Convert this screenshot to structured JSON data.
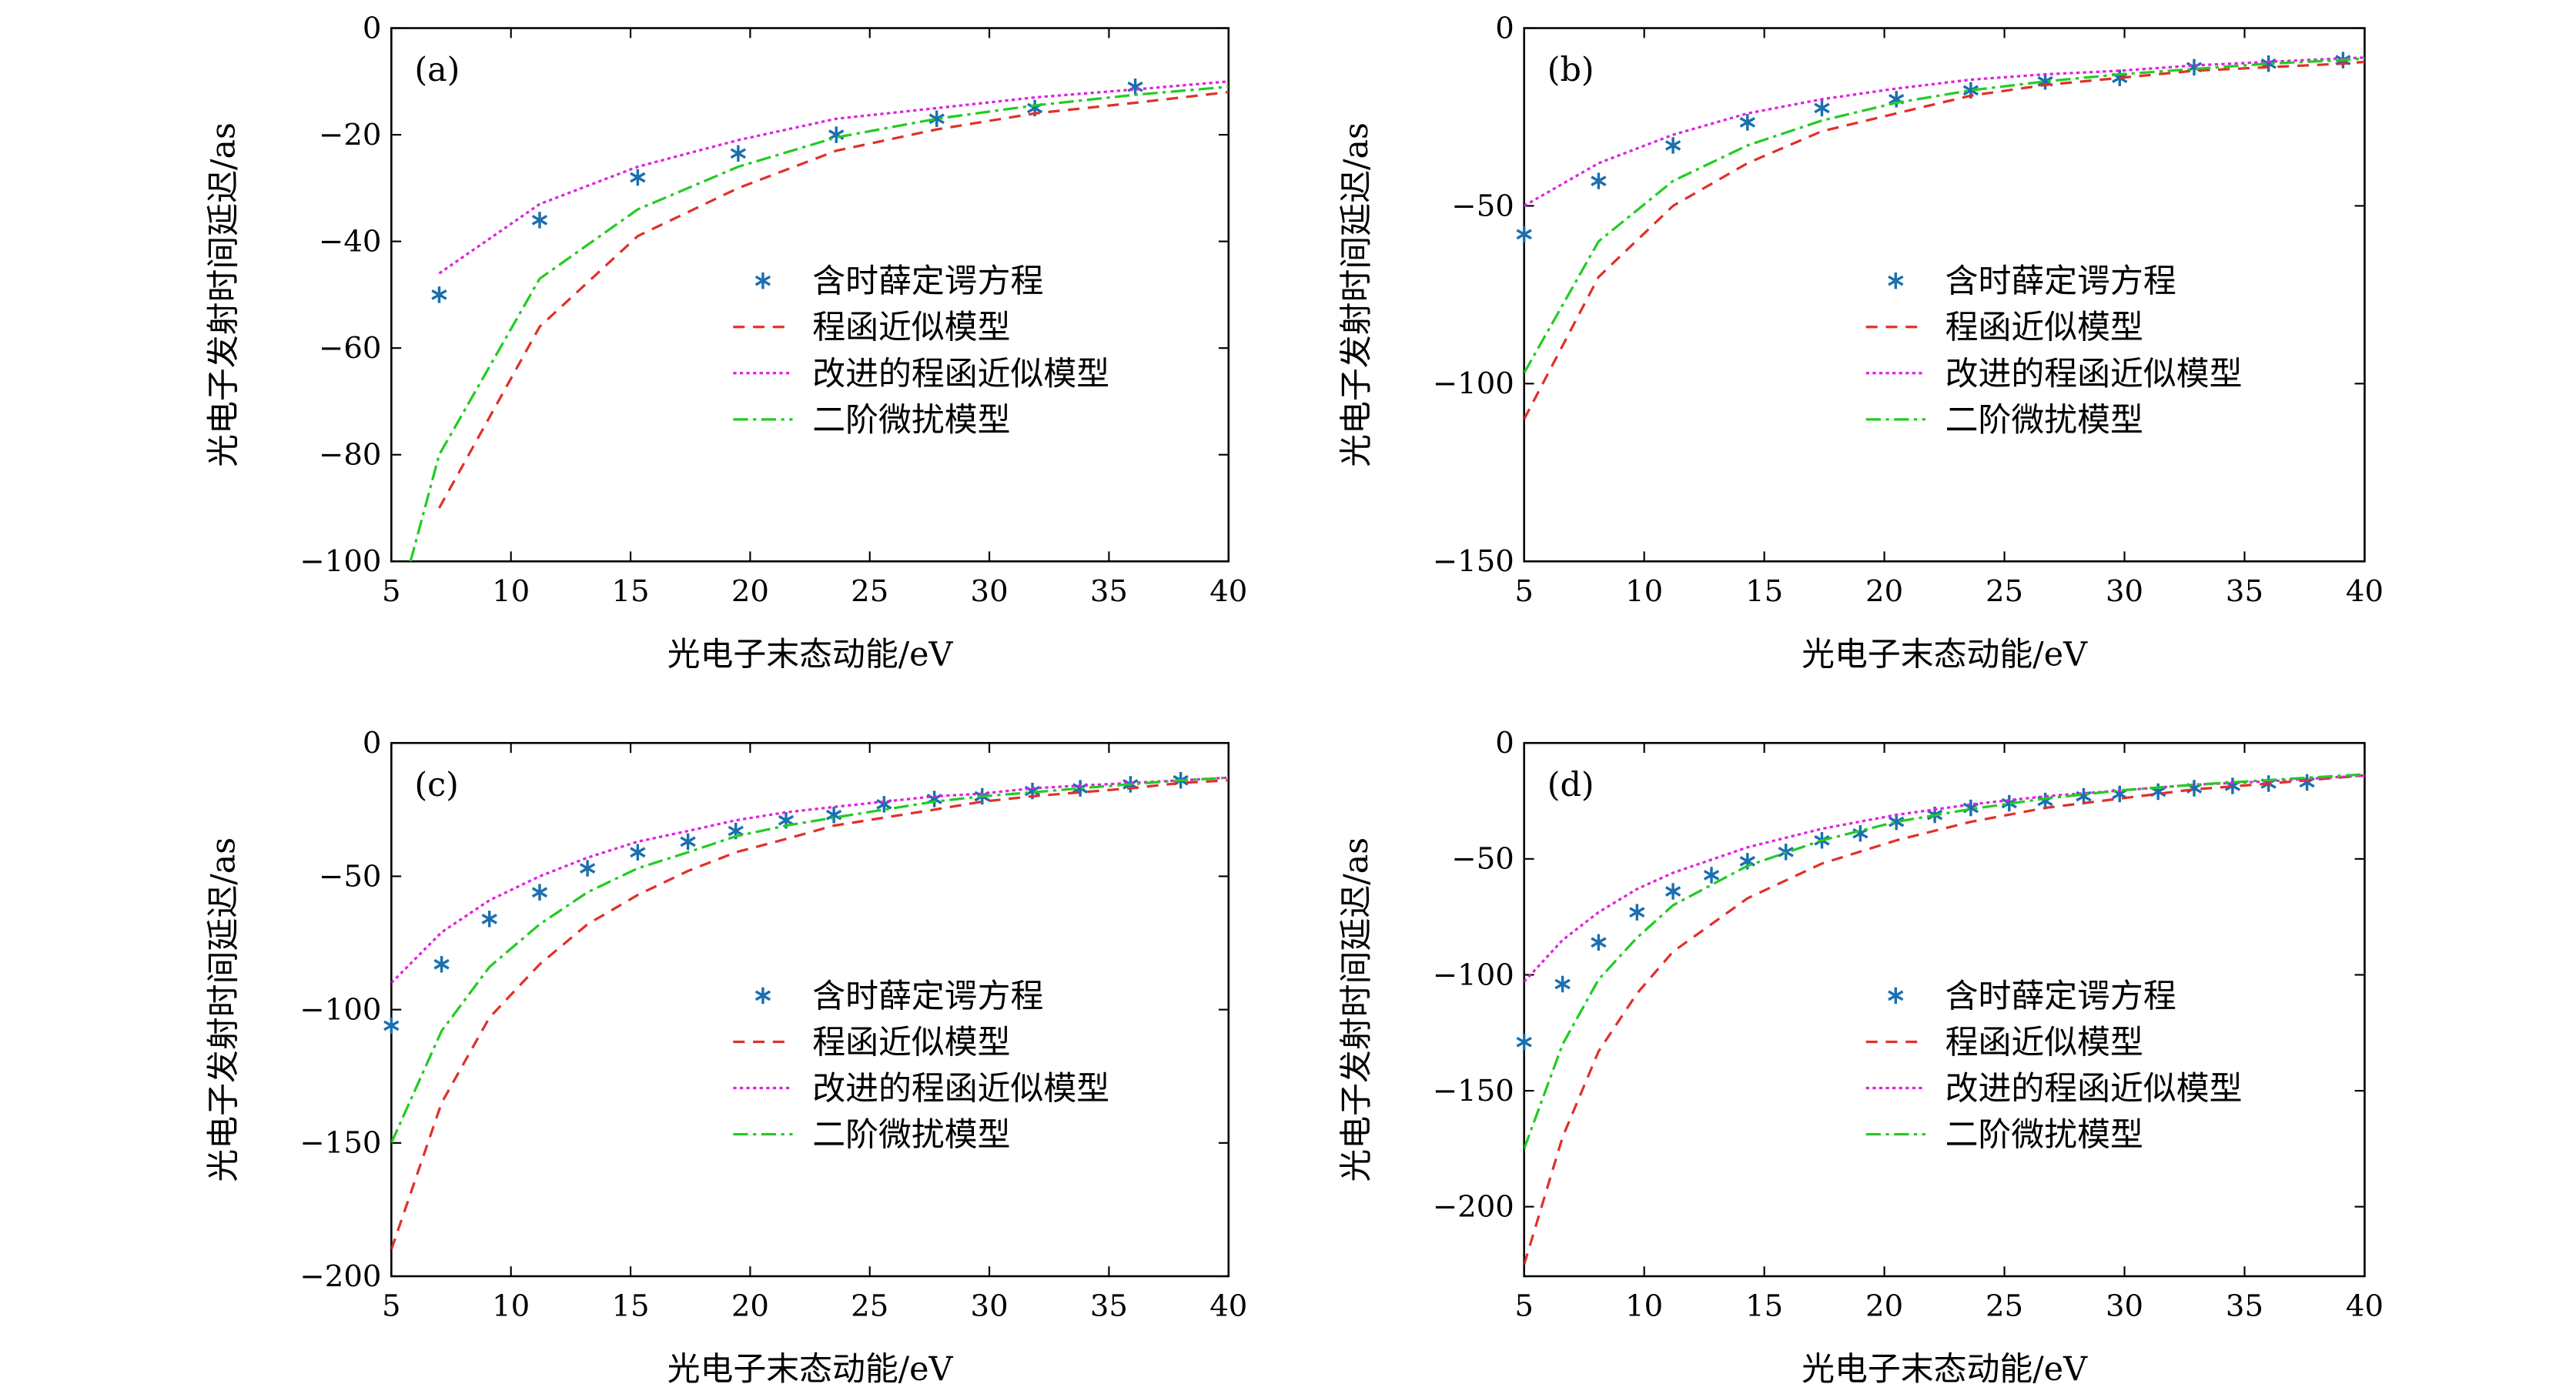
{
  "chart_data": [
    {
      "type": "line",
      "annotation": "(a)",
      "xlabel": "光电子末态动能/eV",
      "ylabel": "光电子发射时间延迟/as",
      "xlim": [
        5,
        40
      ],
      "ylim": [
        -100,
        0
      ],
      "xticks": [
        5,
        10,
        15,
        20,
        25,
        30,
        35,
        40
      ],
      "yticks": [
        0,
        {
          "value": -20,
          "label": "−20"
        },
        {
          "value": -40,
          "label": "−40"
        },
        {
          "value": -60,
          "label": "−60"
        },
        {
          "value": -80,
          "label": "−80"
        },
        {
          "value": -100,
          "label": "−100"
        }
      ],
      "series": [
        {
          "name": "含时薛定谔方程",
          "color": "#1a6fb0",
          "marker": "*",
          "x": [
            7,
            11.2,
            15.3,
            19.5,
            23.6,
            27.8,
            31.9,
            36.1
          ],
          "values": [
            -50,
            -36,
            -28,
            -23.5,
            -20,
            -17,
            -15,
            -11
          ]
        },
        {
          "name": "程函近似模型",
          "color": "#e0302a",
          "linestyle": "dashed",
          "x": [
            7,
            11.2,
            15.3,
            19.5,
            23.6,
            27.8,
            31.9,
            36.1,
            40
          ],
          "values": [
            -90,
            -56,
            -39,
            -30,
            -23,
            -19,
            -16,
            -14,
            -12
          ]
        },
        {
          "name": "改进的程函近似模型",
          "color": "#e020e0",
          "linestyle": "dotted",
          "x": [
            7,
            11.2,
            15.3,
            19.5,
            23.6,
            27.8,
            31.9,
            36.1,
            40
          ],
          "values": [
            -46,
            -33,
            -26,
            -21,
            -17,
            -15,
            -13,
            -11.5,
            -10
          ]
        },
        {
          "name": "二阶微扰模型",
          "color": "#22cc22",
          "linestyle": "dashdot",
          "x": [
            5.8,
            7,
            11.2,
            15.3,
            19.5,
            23.6,
            27.8,
            31.9,
            36.1,
            40
          ],
          "values": [
            -100,
            -80,
            -47,
            -34,
            -26,
            -20.5,
            -17,
            -14.5,
            -12.5,
            -11
          ]
        }
      ]
    },
    {
      "type": "line",
      "annotation": "(b)",
      "xlabel": "光电子末态动能/eV",
      "ylabel": "光电子发射时间延迟/as",
      "xlim": [
        5,
        40
      ],
      "ylim": [
        -150,
        0
      ],
      "xticks": [
        5,
        10,
        15,
        20,
        25,
        30,
        35,
        40
      ],
      "yticks": [
        0,
        {
          "value": -50,
          "label": "−50"
        },
        {
          "value": -100,
          "label": "−100"
        },
        {
          "value": -150,
          "label": "−150"
        }
      ],
      "series": [
        {
          "name": "含时薛定谔方程",
          "color": "#1a6fb0",
          "marker": "*",
          "x": [
            5,
            8.1,
            11.2,
            14.3,
            17.4,
            20.5,
            23.6,
            26.7,
            29.8,
            32.9,
            36,
            39.1
          ],
          "values": [
            -58,
            -43,
            -33,
            -26.5,
            -22.5,
            -20,
            -17.5,
            -15,
            -14,
            -11,
            -10,
            -9
          ]
        },
        {
          "name": "程函近似模型",
          "color": "#e0302a",
          "linestyle": "dashed",
          "x": [
            5,
            8.1,
            11.2,
            14.3,
            17.4,
            20.5,
            23.6,
            26.7,
            29.8,
            32.9,
            36,
            39.1,
            40
          ],
          "values": [
            -110,
            -70,
            -50,
            -38,
            -29,
            -24,
            -19,
            -16,
            -14,
            -12,
            -11,
            -10,
            -9.5
          ]
        },
        {
          "name": "改进的程函近似模型",
          "color": "#e020e0",
          "linestyle": "dotted",
          "x": [
            5,
            8.1,
            11.2,
            14.3,
            17.4,
            20.5,
            23.6,
            26.7,
            29.8,
            32.9,
            36,
            39.1,
            40
          ],
          "values": [
            -50,
            -38,
            -30,
            -24,
            -20,
            -17,
            -14.5,
            -13,
            -12,
            -10.5,
            -9.5,
            -8.5,
            -8.3
          ]
        },
        {
          "name": "二阶微扰模型",
          "color": "#22cc22",
          "linestyle": "dashdot",
          "x": [
            5,
            8.1,
            11.2,
            14.3,
            17.4,
            20.5,
            23.6,
            26.7,
            29.8,
            32.9,
            36,
            39.1,
            40
          ],
          "values": [
            -97,
            -60,
            -43,
            -33,
            -26,
            -21,
            -17.5,
            -15,
            -13,
            -11.5,
            -10,
            -9,
            -8.5
          ]
        }
      ]
    },
    {
      "type": "line",
      "annotation": "(c)",
      "xlabel": "光电子末态动能/eV",
      "ylabel": "光电子发射时间延迟/as",
      "xlim": [
        5,
        40
      ],
      "ylim": [
        -200,
        0
      ],
      "xticks": [
        5,
        10,
        15,
        20,
        25,
        30,
        35,
        40
      ],
      "yticks": [
        0,
        {
          "value": -50,
          "label": "−50"
        },
        {
          "value": -100,
          "label": "−100"
        },
        {
          "value": -150,
          "label": "−150"
        },
        {
          "value": -200,
          "label": "−200"
        }
      ],
      "series": [
        {
          "name": "含时薛定谔方程",
          "color": "#1a6fb0",
          "marker": "*",
          "x": [
            5,
            7.1,
            9.1,
            11.2,
            13.2,
            15.3,
            17.4,
            19.4,
            21.5,
            23.5,
            25.6,
            27.7,
            29.7,
            31.8,
            33.8,
            35.9,
            38
          ],
          "values": [
            -106,
            -83,
            -66,
            -56,
            -47,
            -41,
            -37,
            -33,
            -29,
            -27,
            -23,
            -21,
            -20,
            -18,
            -17,
            -15.5,
            -14
          ]
        },
        {
          "name": "程函近似模型",
          "color": "#e0302a",
          "linestyle": "dashed",
          "x": [
            5,
            7.1,
            9.1,
            11.2,
            13.2,
            15.3,
            17.4,
            19.4,
            21.5,
            23.5,
            25.6,
            27.7,
            29.7,
            31.8,
            33.8,
            35.9,
            38,
            40
          ],
          "values": [
            -190,
            -135,
            -103,
            -83,
            -68,
            -57,
            -48,
            -41,
            -36,
            -31,
            -28,
            -25,
            -22,
            -20,
            -18.5,
            -17,
            -15,
            -14
          ]
        },
        {
          "name": "改进的程函近似模型",
          "color": "#e020e0",
          "linestyle": "dotted",
          "x": [
            5,
            7.1,
            9.1,
            11.2,
            13.2,
            15.3,
            17.4,
            19.4,
            21.5,
            23.5,
            25.6,
            27.7,
            29.7,
            31.8,
            33.8,
            35.9,
            38,
            40
          ],
          "values": [
            -90,
            -71,
            -59,
            -50,
            -43,
            -37,
            -33,
            -29,
            -26,
            -24,
            -22,
            -20,
            -19,
            -17,
            -16,
            -15,
            -14,
            -13
          ]
        },
        {
          "name": "二阶微扰模型",
          "color": "#22cc22",
          "linestyle": "dashdot",
          "x": [
            5,
            7.1,
            9.1,
            11.2,
            13.2,
            15.3,
            17.4,
            19.4,
            21.5,
            23.5,
            25.6,
            27.7,
            29.7,
            31.8,
            33.8,
            35.9,
            38,
            40
          ],
          "values": [
            -150,
            -108,
            -84,
            -68,
            -56,
            -47,
            -41,
            -35,
            -31,
            -28,
            -25,
            -22,
            -20,
            -18.5,
            -17,
            -15.5,
            -14,
            -13
          ]
        }
      ]
    },
    {
      "type": "line",
      "annotation": "(d)",
      "xlabel": "光电子末态动能/eV",
      "ylabel": "光电子发射时间延迟/as",
      "xlim": [
        5,
        40
      ],
      "ylim": [
        -230,
        0
      ],
      "xticks": [
        5,
        10,
        15,
        20,
        25,
        30,
        35,
        40
      ],
      "yticks": [
        0,
        {
          "value": -50,
          "label": "−50"
        },
        {
          "value": -100,
          "label": "−100"
        },
        {
          "value": -150,
          "label": "−150"
        },
        {
          "value": -200,
          "label": "−200"
        }
      ],
      "series": [
        {
          "name": "含时薛定谔方程",
          "color": "#1a6fb0",
          "marker": "*",
          "x": [
            5,
            6.6,
            8.1,
            9.7,
            11.2,
            12.8,
            14.3,
            15.9,
            17.4,
            19,
            20.5,
            22.1,
            23.6,
            25.2,
            26.7,
            28.3,
            29.8,
            31.4,
            32.9,
            34.5,
            36,
            37.6
          ],
          "values": [
            -129,
            -104,
            -86,
            -73,
            -64,
            -57,
            -51,
            -47,
            -42,
            -39,
            -34,
            -31,
            -28,
            -26,
            -25,
            -23,
            -22,
            -21,
            -19.5,
            -18.5,
            -17.5,
            -17
          ]
        },
        {
          "name": "程函近似模型",
          "color": "#e0302a",
          "linestyle": "dashed",
          "x": [
            5,
            6.6,
            8.1,
            9.7,
            11.2,
            14.3,
            17.4,
            20.5,
            23.6,
            26.7,
            29.8,
            32.9,
            36,
            40
          ],
          "values": [
            -225,
            -170,
            -133,
            -108,
            -90,
            -67,
            -52,
            -42,
            -34,
            -28,
            -24,
            -20,
            -17.5,
            -14
          ]
        },
        {
          "name": "改进的程函近似模型",
          "color": "#e020e0",
          "linestyle": "dotted",
          "x": [
            5,
            6.6,
            8.1,
            9.7,
            11.2,
            14.3,
            17.4,
            20.5,
            23.6,
            26.7,
            29.8,
            32.9,
            36,
            40
          ],
          "values": [
            -103,
            -85,
            -73,
            -63,
            -56,
            -45,
            -37,
            -31,
            -26.5,
            -23,
            -20.5,
            -18,
            -16.5,
            -14
          ]
        },
        {
          "name": "二阶微扰模型",
          "color": "#22cc22",
          "linestyle": "dashdot",
          "x": [
            5,
            6.6,
            8.1,
            9.7,
            11.2,
            14.3,
            17.4,
            20.5,
            23.6,
            26.7,
            29.8,
            32.9,
            36,
            40
          ],
          "values": [
            -175,
            -130,
            -102,
            -84,
            -70,
            -53,
            -42,
            -34,
            -28.5,
            -24,
            -20.5,
            -18,
            -16,
            -13.5
          ]
        }
      ]
    }
  ]
}
